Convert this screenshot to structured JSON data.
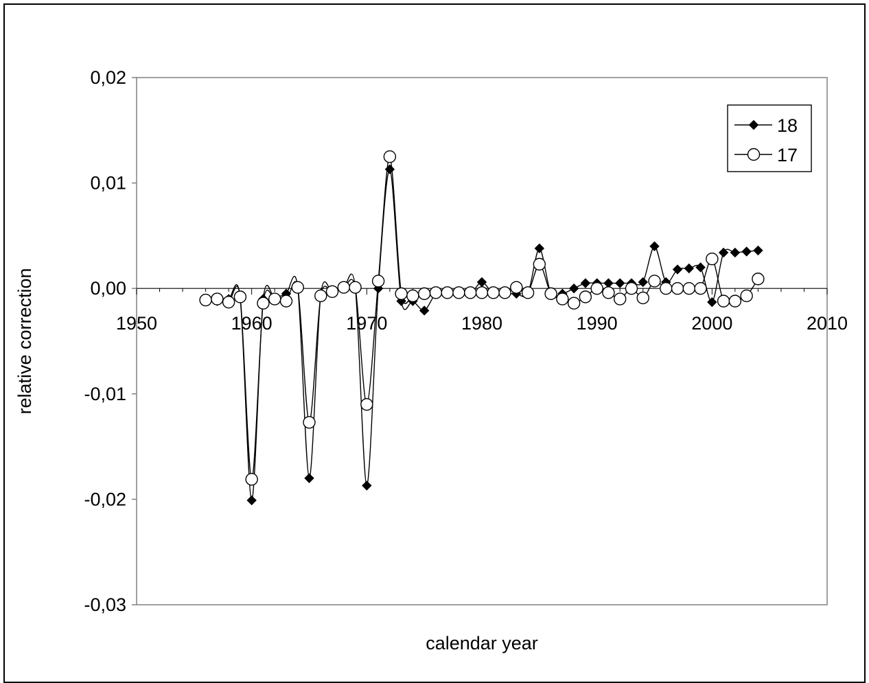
{
  "chart_data": {
    "type": "line",
    "title": "",
    "xlabel": "calendar year",
    "ylabel": "relative correction",
    "xlim": [
      1950,
      2010
    ],
    "ylim": [
      -0.03,
      0.02
    ],
    "x_ticks": [
      1950,
      1960,
      1970,
      1980,
      1990,
      2000,
      2010
    ],
    "x_tick_labels": [
      "1950",
      "1960",
      "1970",
      "1980",
      "1990",
      "2000",
      "2010"
    ],
    "y_ticks": [
      0.02,
      0.01,
      0.0,
      -0.01,
      -0.02,
      -0.03
    ],
    "y_tick_labels": [
      "0,02",
      "0,01",
      "0,00",
      "-0,01",
      "-0,02",
      "-0,03"
    ],
    "grid": false,
    "legend_position": "top-right",
    "line_color": "#000000",
    "series": [
      {
        "name": "18",
        "marker": "filled-diamond",
        "x": [
          1956,
          1957,
          1958,
          1959,
          1960,
          1961,
          1962,
          1963,
          1964,
          1965,
          1966,
          1967,
          1968,
          1969,
          1970,
          1971,
          1972,
          1973,
          1974,
          1975,
          1976,
          1977,
          1978,
          1979,
          1980,
          1981,
          1982,
          1983,
          1984,
          1985,
          1986,
          1987,
          1988,
          1989,
          1990,
          1991,
          1992,
          1993,
          1994,
          1995,
          1996,
          1997,
          1998,
          1999,
          2000,
          2001,
          2002,
          2003,
          2004
        ],
        "y": [
          -0.0011,
          -0.0012,
          -0.001,
          -0.0009,
          -0.0201,
          -0.001,
          -0.0009,
          -0.0005,
          0.0001,
          -0.018,
          -0.0006,
          -0.0003,
          0.0001,
          0.0001,
          -0.0187,
          0.0,
          0.0113,
          -0.0012,
          -0.0012,
          -0.0021,
          -0.0005,
          -0.0005,
          -0.0005,
          -0.0005,
          0.0006,
          -0.0005,
          -0.0005,
          -0.0005,
          -0.0005,
          0.0038,
          -0.0005,
          -0.0005,
          0.0,
          0.0005,
          0.0005,
          0.0005,
          0.0005,
          0.0005,
          0.0006,
          0.004,
          0.0006,
          0.0018,
          0.0019,
          0.002,
          -0.0013,
          0.0034,
          0.0034,
          0.0035,
          0.0036
        ]
      },
      {
        "name": "17",
        "marker": "open-circle",
        "x": [
          1956,
          1957,
          1958,
          1959,
          1960,
          1961,
          1962,
          1963,
          1964,
          1965,
          1966,
          1967,
          1968,
          1969,
          1970,
          1971,
          1972,
          1973,
          1974,
          1975,
          1976,
          1977,
          1978,
          1979,
          1980,
          1981,
          1982,
          1983,
          1984,
          1985,
          1986,
          1987,
          1988,
          1989,
          1990,
          1991,
          1992,
          1993,
          1994,
          1995,
          1996,
          1997,
          1998,
          1999,
          2000,
          2001,
          2002,
          2003,
          2004
        ],
        "y": [
          -0.0011,
          -0.001,
          -0.0013,
          -0.0008,
          -0.0181,
          -0.0014,
          -0.001,
          -0.0012,
          0.0001,
          -0.0127,
          -0.0007,
          -0.0003,
          0.0001,
          0.0001,
          -0.011,
          0.0007,
          0.0125,
          -0.0005,
          -0.0007,
          -0.0005,
          -0.0004,
          -0.0004,
          -0.0004,
          -0.0004,
          -0.0004,
          -0.0004,
          -0.0004,
          0.0001,
          -0.0004,
          0.0023,
          -0.0005,
          -0.001,
          -0.0014,
          -0.0008,
          0.0,
          -0.0004,
          -0.001,
          0.0,
          -0.0009,
          0.0007,
          0.0,
          0.0,
          0.0,
          0.0,
          0.0028,
          -0.0012,
          -0.0012,
          -0.0007,
          0.0009
        ]
      }
    ]
  }
}
